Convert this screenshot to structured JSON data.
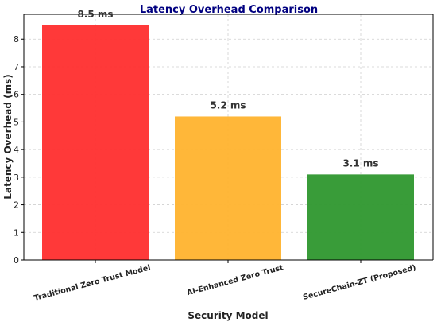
{
  "chart_data": {
    "type": "bar",
    "title": "Latency Overhead Comparison",
    "xlabel": "Security Model",
    "ylabel": "Latency Overhead (ms)",
    "categories": [
      "Traditional Zero Trust Model",
      "AI-Enhanced Zero Trust",
      "SecureChain-ZT (Proposed)"
    ],
    "values": [
      8.5,
      5.2,
      3.1
    ],
    "data_labels": [
      "8.5 ms",
      "5.2 ms",
      "3.1 ms"
    ],
    "colors": [
      "#ff3333",
      "#ffb533",
      "#339933"
    ],
    "title_color": "#000080",
    "ylim": [
      0,
      8.9
    ],
    "yticks": [
      0,
      1,
      2,
      3,
      4,
      5,
      6,
      7,
      8
    ],
    "grid": true,
    "legend": "none"
  }
}
